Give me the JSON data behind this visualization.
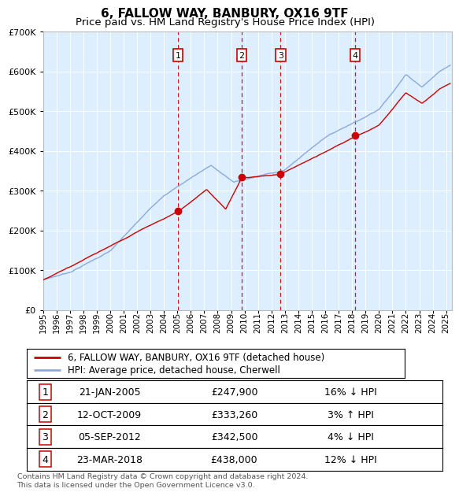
{
  "title": "6, FALLOW WAY, BANBURY, OX16 9TF",
  "subtitle": "Price paid vs. HM Land Registry's House Price Index (HPI)",
  "ylim": [
    0,
    700000
  ],
  "yticks": [
    0,
    100000,
    200000,
    300000,
    400000,
    500000,
    600000,
    700000
  ],
  "ytick_labels": [
    "£0",
    "£100K",
    "£200K",
    "£300K",
    "£400K",
    "£500K",
    "£600K",
    "£700K"
  ],
  "xlim_start": 1995.0,
  "xlim_end": 2025.4,
  "background_color": "#ffffff",
  "plot_bg_color": "#ddeeff",
  "grid_color": "#ffffff",
  "sale_dates": [
    2005.05,
    2009.78,
    2012.68,
    2018.22
  ],
  "sale_prices": [
    247900,
    333260,
    342500,
    438000
  ],
  "sale_labels": [
    "1",
    "2",
    "3",
    "4"
  ],
  "sale_date_strings": [
    "21-JAN-2005",
    "12-OCT-2009",
    "05-SEP-2012",
    "23-MAR-2018"
  ],
  "sale_price_strings": [
    "£247,900",
    "£333,260",
    "£342,500",
    "£438,000"
  ],
  "sale_hpi_strings": [
    "16% ↓ HPI",
    "3% ↑ HPI",
    "4% ↓ HPI",
    "12% ↓ HPI"
  ],
  "red_line_color": "#cc0000",
  "blue_line_color": "#88aadd",
  "vline_color": "#cc0000",
  "marker_box_color": "#cc0000",
  "legend_label_red": "6, FALLOW WAY, BANBURY, OX16 9TF (detached house)",
  "legend_label_blue": "HPI: Average price, detached house, Cherwell",
  "footer_text": "Contains HM Land Registry data © Crown copyright and database right 2024.\nThis data is licensed under the Open Government Licence v3.0.",
  "title_fontsize": 11,
  "subtitle_fontsize": 9.5,
  "tick_fontsize": 8,
  "legend_fontsize": 8.5
}
